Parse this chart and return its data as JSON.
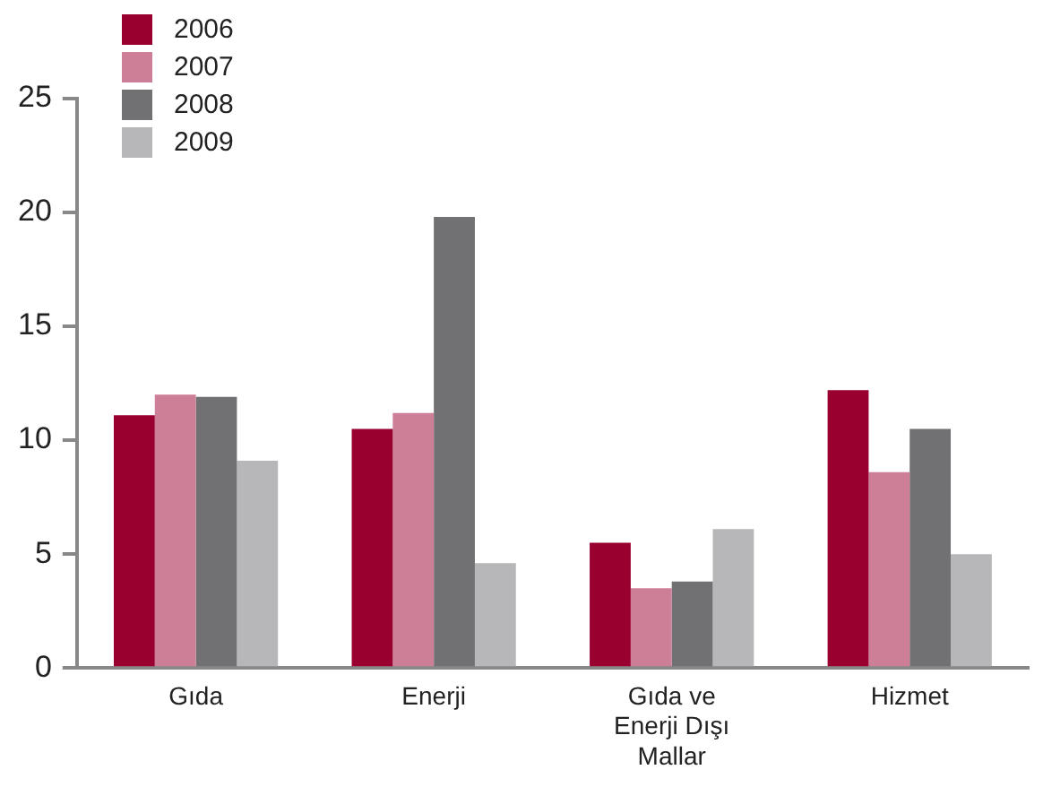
{
  "chart_data": {
    "type": "bar",
    "categories": [
      "Gıda",
      "Enerji",
      "Gıda ve Enerji Dışı Mallar",
      "Hizmet"
    ],
    "series": [
      {
        "name": "2006",
        "color": "#990030",
        "values": [
          11.1,
          10.5,
          5.5,
          12.2
        ]
      },
      {
        "name": "2007",
        "color": "#cc7f96",
        "values": [
          12.0,
          11.2,
          3.5,
          8.6
        ]
      },
      {
        "name": "2008",
        "color": "#717073",
        "values": [
          11.9,
          19.8,
          3.8,
          10.5
        ]
      },
      {
        "name": "2009",
        "color": "#b7b7b9",
        "values": [
          9.1,
          4.6,
          6.1,
          5.0
        ]
      }
    ],
    "ylim": [
      0,
      25
    ],
    "yticks": [
      0,
      5,
      10,
      15,
      20,
      25
    ],
    "grid": false,
    "legend": "top left"
  }
}
